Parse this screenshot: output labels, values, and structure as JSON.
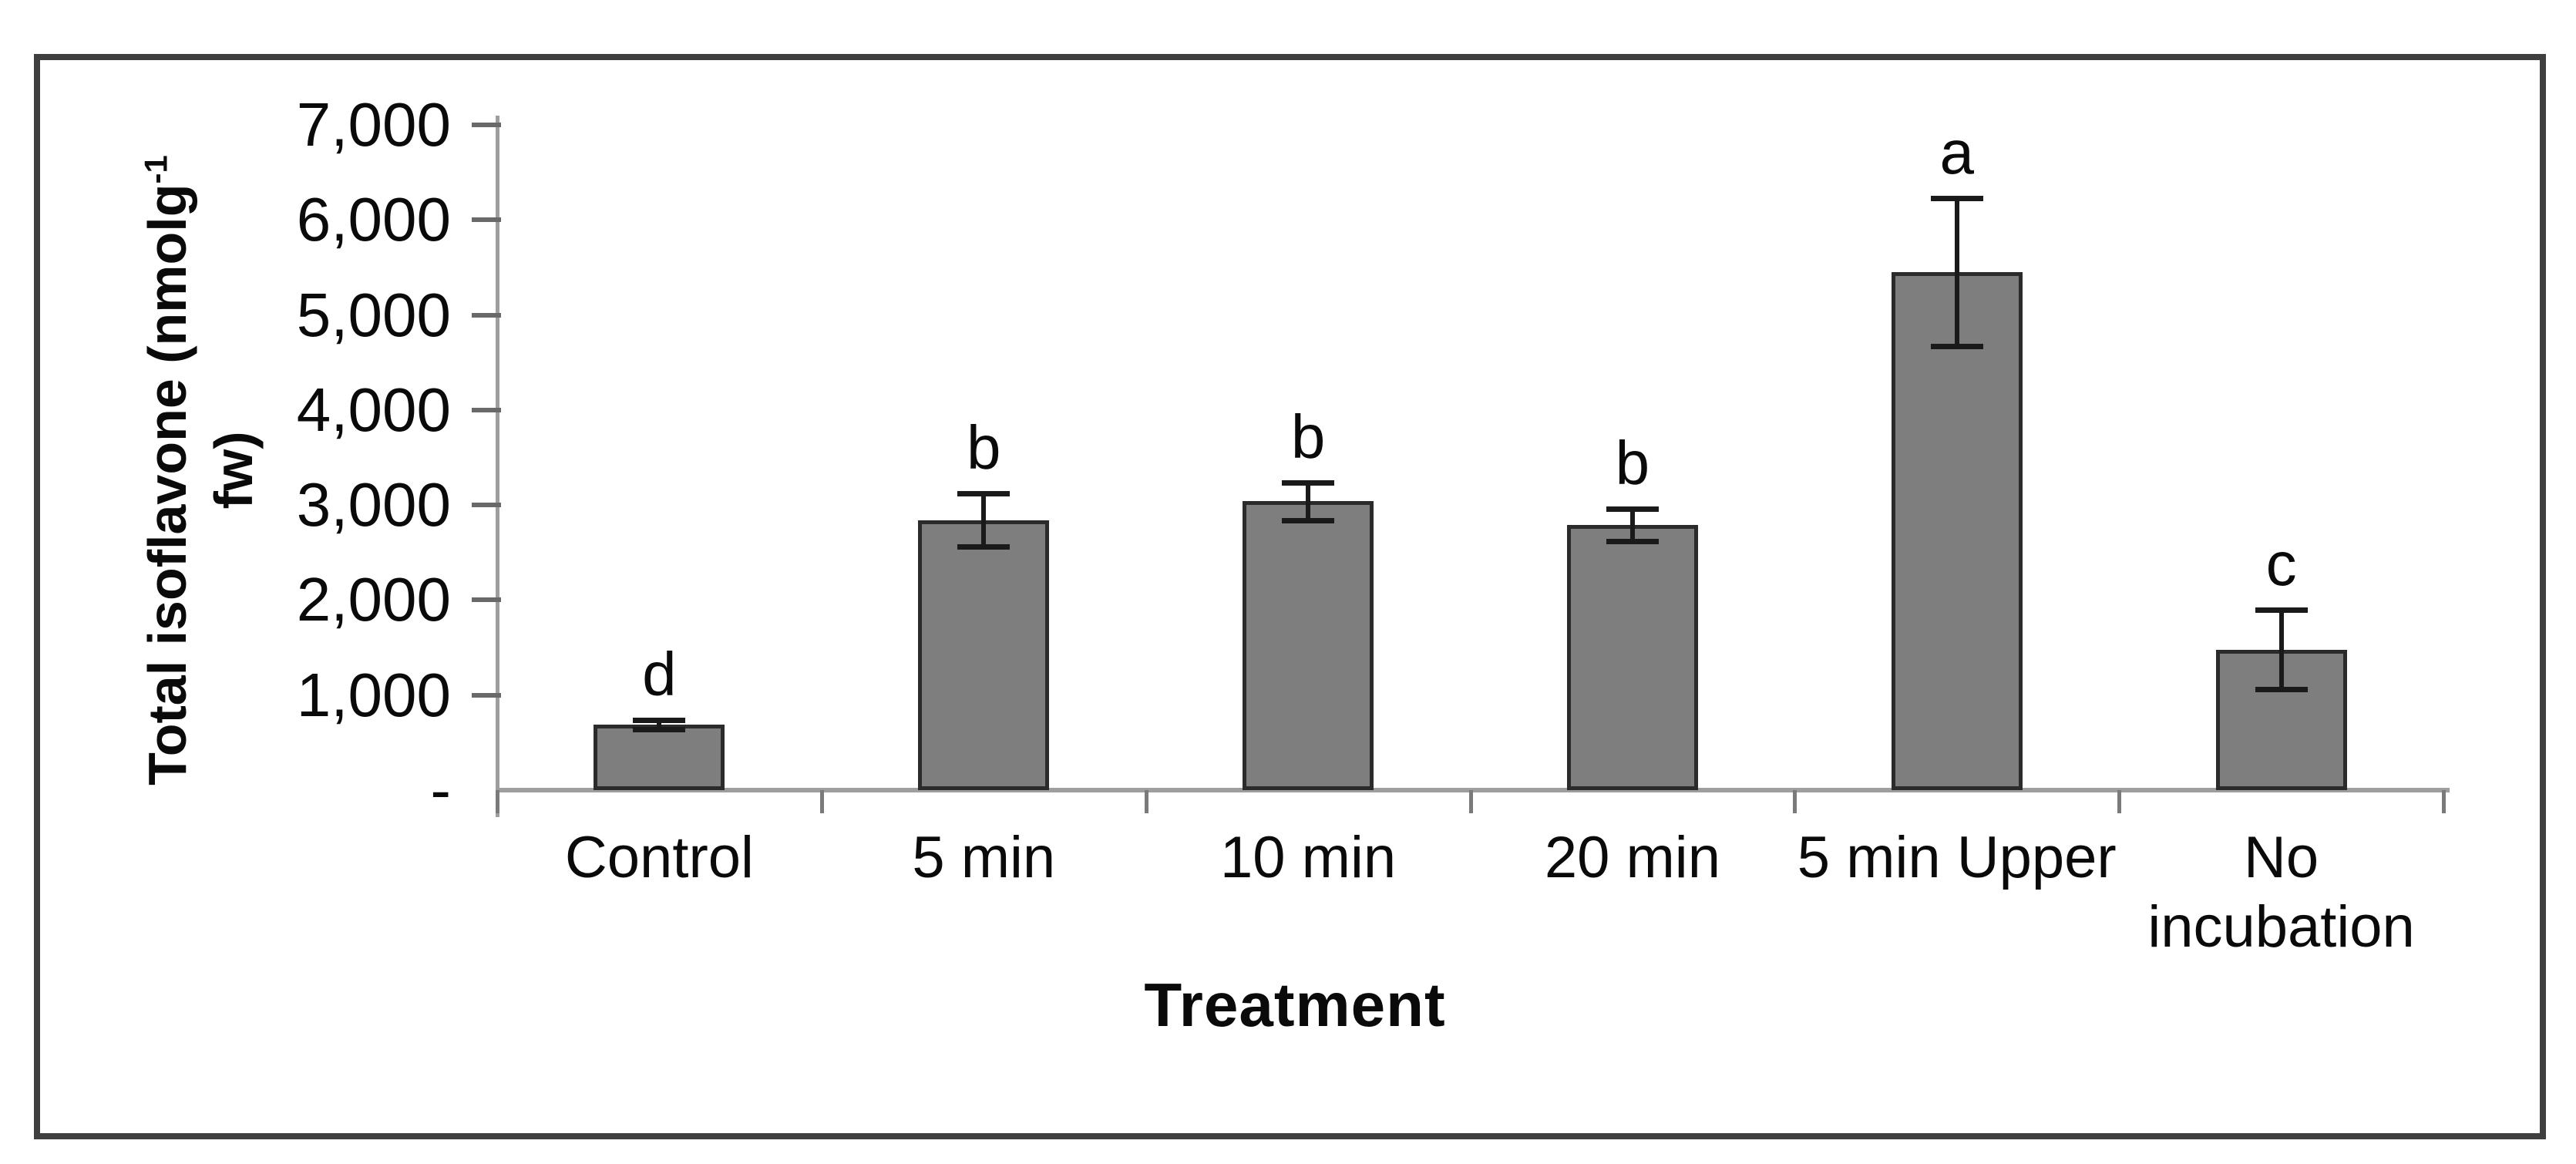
{
  "axes": {
    "x_title": "Treatment",
    "y_title_line1_pre": "Total isoflavone (nmolg",
    "y_title_sup": "-1",
    "y_title_line2": "fw)"
  },
  "colors": {
    "bar_fill": "#7e7e7e",
    "bar_border": "#2b2b2b",
    "error_bar": "#1a1a1a",
    "axis_line": "#9e9e9e",
    "frame_border": "#3f3f3f",
    "text": "#0a0a0a",
    "background": "#ffffff"
  },
  "chart_data": {
    "type": "bar",
    "title": "",
    "xlabel": "Treatment",
    "ylabel": "Total isoflavone (nmolg-1 fw)",
    "categories": [
      "Control",
      "5 min",
      "10 min",
      "20 min",
      "5 min Upper",
      "No\nincubation"
    ],
    "values": [
      690,
      2840,
      3040,
      2790,
      5450,
      1480
    ],
    "errors": [
      50,
      280,
      200,
      170,
      780,
      420
    ],
    "sig_letters": [
      "d",
      "b",
      "b",
      "b",
      "a",
      "c"
    ],
    "ylim": [
      0,
      7000
    ],
    "ytick_values": [
      7000,
      6000,
      5000,
      4000,
      3000,
      2000,
      1000,
      0
    ],
    "ytick_labels": [
      "7,000",
      "6,000",
      "5,000",
      "4,000",
      "3,000",
      "2,000",
      "1,000",
      "-"
    ],
    "grid": false,
    "legend": false,
    "error_bars": true
  }
}
